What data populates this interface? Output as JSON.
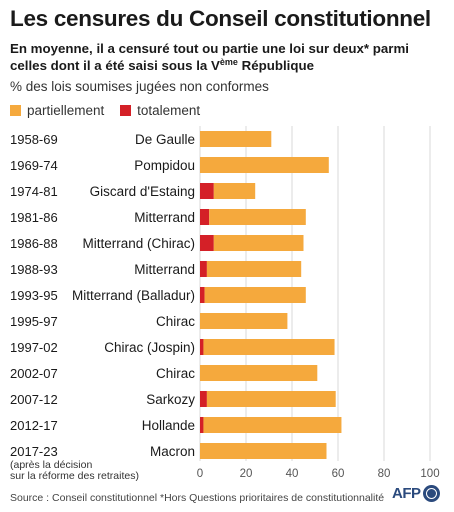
{
  "title": "Les censures du Conseil constitutionnel",
  "subtitle": {
    "main": "En moyenne, il a censuré tout ou partie une loi sur deux* parmi celles dont il a été saisi sous la V",
    "superscript": "ème",
    "tail": " République"
  },
  "colors": {
    "partial": "#f5a93d",
    "total": "#d42027",
    "grid": "#d9d9d9",
    "text": "#1a1a1a"
  },
  "footer": {
    "source": "Source : Conseil constitutionnel",
    "footnote": "*Hors Questions prioritaires de constitutionnalité",
    "logo": "AFP"
  },
  "chart_data": {
    "type": "bar",
    "orientation": "horizontal",
    "stacked": true,
    "xlabel": "% des lois soumises jugées non conformes",
    "xlim": [
      0,
      100
    ],
    "xticks": [
      0,
      20,
      40,
      60,
      80,
      100
    ],
    "grid": true,
    "legend_position": "top-left",
    "legend": [
      "partiellement",
      "totalement"
    ],
    "categories": [
      {
        "period": "1958-69",
        "president": "De Gaulle"
      },
      {
        "period": "1969-74",
        "president": "Pompidou"
      },
      {
        "period": "1974-81",
        "president": "Giscard d'Estaing"
      },
      {
        "period": "1981-86",
        "president": "Mitterrand"
      },
      {
        "period": "1986-88",
        "president": "Mitterrand (Chirac)"
      },
      {
        "period": "1988-93",
        "president": "Mitterrand"
      },
      {
        "period": "1993-95",
        "president": "Mitterrand (Balladur)"
      },
      {
        "period": "1995-97",
        "president": "Chirac"
      },
      {
        "period": "1997-02",
        "president": "Chirac (Jospin)"
      },
      {
        "period": "2002-07",
        "president": "Chirac"
      },
      {
        "period": "2007-12",
        "president": "Sarkozy"
      },
      {
        "period": "2012-17",
        "president": "Hollande"
      },
      {
        "period": "2017-23",
        "president": "Macron",
        "note": [
          "(après la décision",
          "sur la réforme des retraites)"
        ]
      }
    ],
    "series": [
      {
        "name": "totalement",
        "values": [
          0,
          0,
          6,
          4,
          6,
          3,
          2,
          0,
          1.5,
          0,
          3,
          1.5,
          0
        ]
      },
      {
        "name": "partiellement",
        "values": [
          31,
          56,
          18,
          42,
          39,
          41,
          44,
          38,
          57,
          51,
          56,
          60,
          55
        ]
      }
    ]
  }
}
